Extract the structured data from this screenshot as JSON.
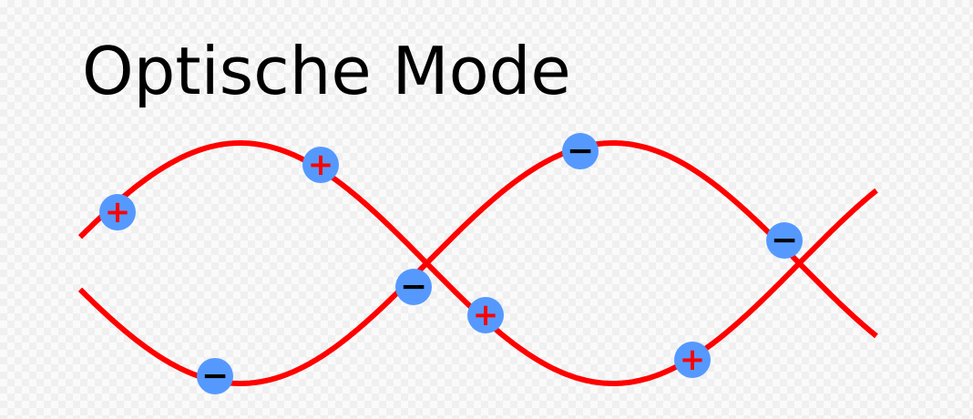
{
  "title": "Optische Mode",
  "colors": {
    "wave": "#ff0000",
    "ion_fill": "#5599ff",
    "plus_sign": "#ff0000",
    "minus_sign": "#000000"
  },
  "waves": [
    {
      "name": "upper-wave"
    },
    {
      "name": "lower-wave"
    }
  ],
  "ions": [
    {
      "charge": "+",
      "wave": "upper"
    },
    {
      "charge": "+",
      "wave": "upper"
    },
    {
      "charge": "−",
      "wave": "lower"
    },
    {
      "charge": "−",
      "wave": "lower"
    },
    {
      "charge": "+",
      "wave": "lower"
    },
    {
      "charge": "−",
      "wave": "upper"
    },
    {
      "charge": "+",
      "wave": "lower"
    },
    {
      "charge": "−",
      "wave": "upper"
    }
  ]
}
